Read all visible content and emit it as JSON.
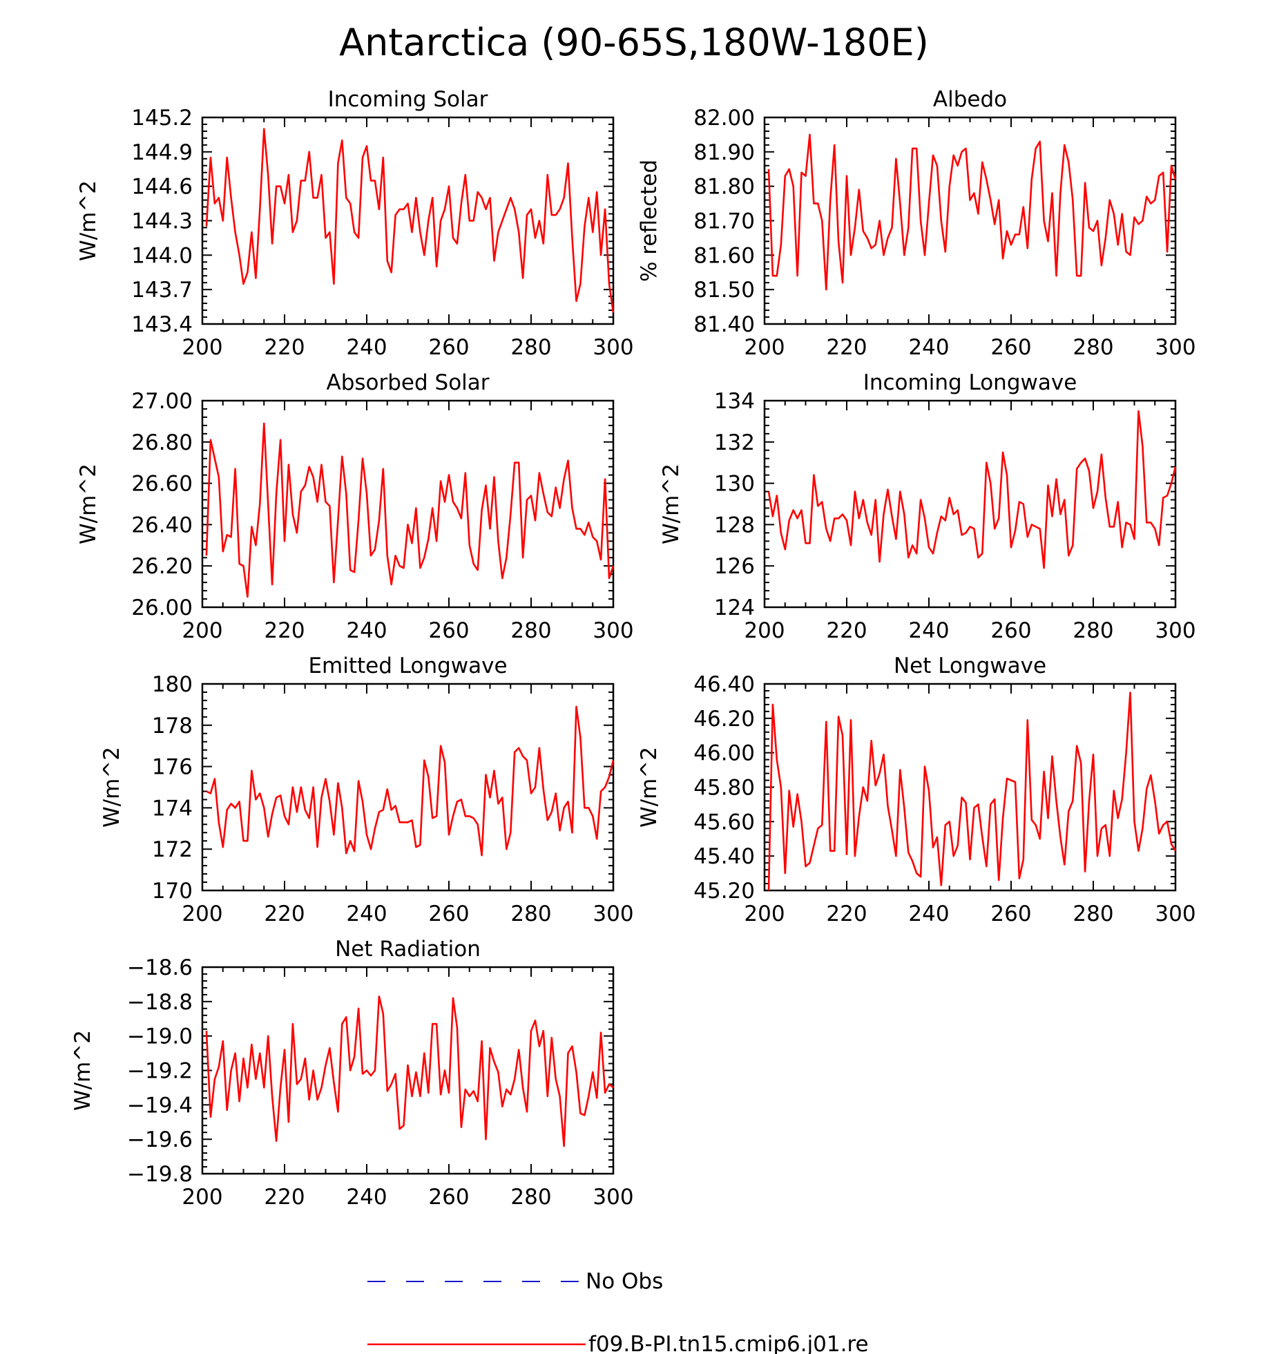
{
  "figure": {
    "title": "Antarctica (90-65S,180W-180E)"
  },
  "legend": {
    "entries": [
      {
        "label": "No Obs",
        "color": "#1515c8",
        "style": "dashed"
      },
      {
        "label": "f09.B-PI.tn15.cmip6.j01.re",
        "color": "#ff0000",
        "style": "solid"
      }
    ]
  },
  "chart_data": [
    {
      "type": "line",
      "title": "Incoming Solar",
      "ylabel": "W/m^2",
      "xlim": [
        200,
        300
      ],
      "ylim": [
        143.4,
        145.2
      ],
      "xticks": [
        "200",
        "220",
        "240",
        "260",
        "280",
        "300"
      ],
      "yticks": [
        "143.4",
        "143.7",
        "144.0",
        "144.3",
        "144.6",
        "144.9",
        "145.2"
      ],
      "series": [
        {
          "color": "#ff0000",
          "x_start": 201,
          "x_step": 1,
          "values": [
            144.25,
            144.85,
            144.45,
            144.5,
            144.3,
            144.85,
            144.5,
            144.2,
            144.0,
            143.75,
            143.85,
            144.2,
            143.8,
            144.4,
            145.1,
            144.7,
            144.1,
            144.6,
            144.6,
            144.45,
            144.7,
            144.2,
            144.3,
            144.65,
            144.65,
            144.9,
            144.5,
            144.5,
            144.7,
            144.15,
            144.2,
            143.75,
            144.8,
            145.0,
            144.5,
            144.45,
            144.2,
            144.15,
            144.85,
            144.95,
            144.65,
            144.65,
            144.4,
            144.85,
            143.95,
            143.85,
            144.35,
            144.4,
            144.4,
            144.45,
            144.2,
            144.5,
            144.2,
            144.0,
            144.3,
            144.5,
            143.9,
            144.3,
            144.4,
            144.6,
            144.15,
            144.1,
            144.45,
            144.7,
            144.3,
            144.3,
            144.55,
            144.5,
            144.4,
            144.5,
            143.95,
            144.2,
            144.3,
            144.4,
            144.5,
            144.4,
            144.2,
            143.8,
            144.35,
            144.4,
            144.15,
            144.3,
            144.1,
            144.7,
            144.35,
            144.35,
            144.4,
            144.5,
            144.8,
            144.15,
            143.6,
            143.75,
            144.25,
            144.5,
            144.2,
            144.55,
            144.0,
            144.4,
            143.75,
            143.5
          ]
        }
      ]
    },
    {
      "type": "line",
      "title": "Albedo",
      "ylabel": "% reflected",
      "xlim": [
        200,
        300
      ],
      "ylim": [
        81.4,
        82.0
      ],
      "xticks": [
        "200",
        "220",
        "240",
        "260",
        "280",
        "300"
      ],
      "yticks": [
        "81.40",
        "81.50",
        "81.60",
        "81.70",
        "81.80",
        "81.90",
        "82.00"
      ],
      "series": [
        {
          "color": "#ff0000",
          "x_start": 201,
          "x_step": 1,
          "values": [
            81.85,
            81.54,
            81.54,
            81.63,
            81.83,
            81.85,
            81.8,
            81.54,
            81.84,
            81.83,
            81.95,
            81.75,
            81.75,
            81.7,
            81.5,
            81.76,
            81.92,
            81.64,
            81.52,
            81.83,
            81.6,
            81.68,
            81.79,
            81.67,
            81.65,
            81.62,
            81.63,
            81.7,
            81.6,
            81.65,
            81.68,
            81.88,
            81.75,
            81.6,
            81.68,
            81.91,
            81.91,
            81.7,
            81.6,
            81.75,
            81.89,
            81.86,
            81.7,
            81.61,
            81.8,
            81.89,
            81.86,
            81.9,
            81.91,
            81.76,
            81.78,
            81.72,
            81.87,
            81.82,
            81.76,
            81.69,
            81.76,
            81.59,
            81.67,
            81.63,
            81.66,
            81.66,
            81.74,
            81.62,
            81.82,
            81.91,
            81.93,
            81.7,
            81.64,
            81.78,
            81.54,
            81.78,
            81.92,
            81.87,
            81.76,
            81.54,
            81.54,
            81.81,
            81.68,
            81.67,
            81.7,
            81.57,
            81.65,
            81.76,
            81.72,
            81.63,
            81.72,
            81.61,
            81.6,
            81.71,
            81.69,
            81.7,
            81.77,
            81.75,
            81.76,
            81.83,
            81.84,
            81.61,
            81.86,
            81.82
          ]
        }
      ]
    },
    {
      "type": "line",
      "title": "Absorbed Solar",
      "ylabel": "W/m^2",
      "xlim": [
        200,
        300
      ],
      "ylim": [
        26.0,
        27.0
      ],
      "xticks": [
        "200",
        "220",
        "240",
        "260",
        "280",
        "300"
      ],
      "yticks": [
        "26.00",
        "26.20",
        "26.40",
        "26.60",
        "26.80",
        "27.00"
      ],
      "series": [
        {
          "color": "#ff0000",
          "x_start": 201,
          "x_step": 1,
          "values": [
            26.25,
            26.81,
            26.72,
            26.63,
            26.27,
            26.35,
            26.34,
            26.67,
            26.21,
            26.2,
            26.05,
            26.39,
            26.3,
            26.5,
            26.89,
            26.5,
            26.11,
            26.55,
            26.81,
            26.32,
            26.69,
            26.45,
            26.36,
            26.56,
            26.59,
            26.68,
            26.63,
            26.51,
            26.69,
            26.51,
            26.49,
            26.12,
            26.42,
            26.73,
            26.55,
            26.18,
            26.17,
            26.42,
            26.72,
            26.55,
            26.25,
            26.28,
            26.42,
            26.67,
            26.25,
            26.11,
            26.25,
            26.2,
            26.19,
            26.4,
            26.31,
            26.48,
            26.19,
            26.24,
            26.33,
            26.48,
            26.32,
            26.61,
            26.51,
            26.64,
            26.51,
            26.48,
            26.43,
            26.65,
            26.3,
            26.21,
            26.18,
            26.47,
            26.59,
            26.38,
            26.63,
            26.32,
            26.14,
            26.24,
            26.45,
            26.7,
            26.7,
            26.24,
            26.52,
            26.54,
            26.42,
            26.65,
            26.55,
            26.46,
            26.44,
            26.58,
            26.48,
            26.62,
            26.71,
            26.48,
            26.38,
            26.38,
            26.35,
            26.41,
            26.34,
            26.32,
            26.23,
            26.62,
            26.14,
            26.2
          ]
        }
      ]
    },
    {
      "type": "line",
      "title": "Incoming Longwave",
      "ylabel": "W/m^2",
      "xlim": [
        200,
        300
      ],
      "ylim": [
        124,
        134
      ],
      "xticks": [
        "200",
        "220",
        "240",
        "260",
        "280",
        "300"
      ],
      "yticks": [
        "124",
        "126",
        "128",
        "130",
        "132",
        "134"
      ],
      "series": [
        {
          "color": "#ff0000",
          "x_start": 201,
          "x_step": 1,
          "values": [
            129.6,
            128.4,
            129.4,
            127.6,
            126.8,
            128.2,
            128.7,
            128.3,
            128.7,
            127.1,
            127.1,
            130.4,
            128.9,
            129.1,
            127.8,
            127.2,
            128.3,
            128.3,
            128.5,
            128.2,
            127.0,
            129.6,
            128.3,
            129.2,
            128.1,
            127.5,
            129.2,
            126.2,
            128.5,
            129.7,
            128.4,
            127.3,
            129.6,
            128.5,
            126.4,
            127.0,
            126.6,
            129.2,
            128.3,
            126.9,
            126.6,
            127.6,
            128.4,
            128.2,
            129.3,
            128.5,
            128.7,
            127.5,
            127.6,
            127.9,
            127.8,
            126.4,
            126.6,
            131.0,
            130.0,
            127.8,
            128.3,
            131.5,
            130.4,
            126.9,
            127.7,
            129.1,
            129.0,
            127.4,
            128.0,
            127.9,
            127.8,
            125.9,
            129.9,
            128.4,
            130.2,
            128.5,
            129.2,
            126.5,
            127.0,
            130.7,
            131.0,
            131.2,
            130.6,
            128.8,
            129.6,
            131.4,
            129.3,
            127.9,
            127.9,
            129.1,
            126.9,
            128.1,
            128.0,
            127.3,
            133.5,
            131.8,
            128.1,
            128.1,
            127.8,
            127.0,
            129.3,
            129.4,
            130.0,
            130.8
          ]
        }
      ]
    },
    {
      "type": "line",
      "title": "Emitted Longwave",
      "ylabel": "W/m^2",
      "xlim": [
        200,
        300
      ],
      "ylim": [
        170,
        180
      ],
      "xticks": [
        "200",
        "220",
        "240",
        "260",
        "280",
        "300"
      ],
      "yticks": [
        "170",
        "172",
        "174",
        "176",
        "178",
        "180"
      ],
      "series": [
        {
          "color": "#ff0000",
          "x_start": 201,
          "x_step": 1,
          "values": [
            174.8,
            174.7,
            175.4,
            173.3,
            172.1,
            173.9,
            174.2,
            174.0,
            174.3,
            172.4,
            172.4,
            175.8,
            174.4,
            174.7,
            174.0,
            172.6,
            173.7,
            174.5,
            174.6,
            173.6,
            173.2,
            175.0,
            173.8,
            175.0,
            173.9,
            173.5,
            175.0,
            172.1,
            174.5,
            175.4,
            174.3,
            172.7,
            175.2,
            174.0,
            171.8,
            172.4,
            171.9,
            175.3,
            174.3,
            172.7,
            172.0,
            173.0,
            173.8,
            173.9,
            174.9,
            173.9,
            174.1,
            173.3,
            173.3,
            173.3,
            173.4,
            172.1,
            172.2,
            176.3,
            175.5,
            173.5,
            173.6,
            177.0,
            176.2,
            172.7,
            173.6,
            174.3,
            174.4,
            173.6,
            173.6,
            173.5,
            173.2,
            171.7,
            175.6,
            174.5,
            175.8,
            174.2,
            174.5,
            172.0,
            172.8,
            176.7,
            176.9,
            176.5,
            176.3,
            174.7,
            175.0,
            176.9,
            174.9,
            173.4,
            173.8,
            174.7,
            172.9,
            174.0,
            174.3,
            172.8,
            178.9,
            177.4,
            174.0,
            174.0,
            173.6,
            172.5,
            174.8,
            175.0,
            175.5,
            176.3
          ]
        }
      ]
    },
    {
      "type": "line",
      "title": "Net Longwave",
      "ylabel": "W/m^2",
      "xlim": [
        200,
        300
      ],
      "ylim": [
        45.2,
        46.4
      ],
      "xticks": [
        "200",
        "220",
        "240",
        "260",
        "280",
        "300"
      ],
      "yticks": [
        "45.20",
        "45.40",
        "45.60",
        "45.80",
        "46.00",
        "46.20",
        "46.40"
      ],
      "series": [
        {
          "color": "#ff0000",
          "x_start": 201,
          "x_step": 1,
          "values": [
            45.2,
            46.28,
            45.96,
            45.8,
            45.3,
            45.78,
            45.57,
            45.76,
            45.6,
            45.34,
            45.36,
            45.46,
            45.56,
            45.58,
            46.18,
            45.43,
            45.43,
            46.21,
            46.1,
            45.41,
            46.19,
            45.4,
            45.63,
            45.8,
            45.72,
            46.07,
            45.81,
            45.88,
            45.99,
            45.69,
            45.55,
            45.4,
            45.9,
            45.68,
            45.42,
            45.37,
            45.3,
            45.28,
            45.92,
            45.78,
            45.45,
            45.51,
            45.23,
            45.58,
            45.6,
            45.4,
            45.46,
            45.74,
            45.71,
            45.38,
            45.68,
            45.7,
            45.51,
            45.34,
            45.7,
            45.73,
            45.26,
            45.62,
            45.85,
            45.84,
            45.83,
            45.27,
            45.38,
            46.19,
            45.61,
            45.58,
            45.5,
            45.89,
            45.62,
            45.98,
            45.72,
            45.51,
            45.35,
            45.66,
            45.72,
            46.04,
            45.94,
            45.31,
            45.72,
            45.99,
            45.4,
            45.56,
            45.58,
            45.4,
            45.78,
            45.62,
            45.73,
            46.0,
            46.35,
            45.6,
            45.43,
            45.56,
            45.79,
            45.87,
            45.72,
            45.53,
            45.58,
            45.6,
            45.47,
            45.43
          ]
        }
      ]
    },
    {
      "type": "line",
      "title": "Net Radiation",
      "ylabel": "W/m^2",
      "xlim": [
        200,
        300
      ],
      "ylim": [
        -19.8,
        -18.6
      ],
      "xticks": [
        "200",
        "220",
        "240",
        "260",
        "280",
        "300"
      ],
      "yticks": [
        "−19.8",
        "−19.6",
        "−19.4",
        "−19.2",
        "−19.0",
        "−18.8",
        "−18.6"
      ],
      "series": [
        {
          "color": "#ff0000",
          "x_start": 201,
          "x_step": 1,
          "values": [
            -18.97,
            -19.47,
            -19.25,
            -19.18,
            -19.03,
            -19.43,
            -19.2,
            -19.1,
            -19.38,
            -19.13,
            -19.3,
            -19.05,
            -19.25,
            -19.1,
            -19.3,
            -19.0,
            -19.35,
            -19.61,
            -19.3,
            -19.08,
            -19.5,
            -18.93,
            -19.28,
            -19.25,
            -19.13,
            -19.37,
            -19.2,
            -19.37,
            -19.3,
            -19.17,
            -19.07,
            -19.27,
            -19.44,
            -18.93,
            -18.89,
            -19.2,
            -19.12,
            -18.84,
            -19.22,
            -19.2,
            -19.23,
            -19.2,
            -18.77,
            -18.87,
            -19.32,
            -19.28,
            -19.22,
            -19.54,
            -19.52,
            -19.17,
            -19.35,
            -19.21,
            -19.35,
            -19.1,
            -19.33,
            -18.93,
            -18.93,
            -19.34,
            -19.2,
            -19.33,
            -18.78,
            -18.95,
            -19.53,
            -19.31,
            -19.35,
            -19.32,
            -19.38,
            -19.03,
            -19.6,
            -19.07,
            -19.15,
            -19.21,
            -19.41,
            -19.31,
            -19.34,
            -19.25,
            -19.08,
            -19.3,
            -19.44,
            -18.97,
            -18.91,
            -19.06,
            -18.97,
            -19.35,
            -19.01,
            -19.25,
            -19.35,
            -19.64,
            -19.1,
            -19.06,
            -19.21,
            -19.45,
            -19.46,
            -19.35,
            -19.21,
            -19.36,
            -18.98,
            -19.33,
            -19.28,
            -19.3
          ]
        }
      ]
    }
  ]
}
